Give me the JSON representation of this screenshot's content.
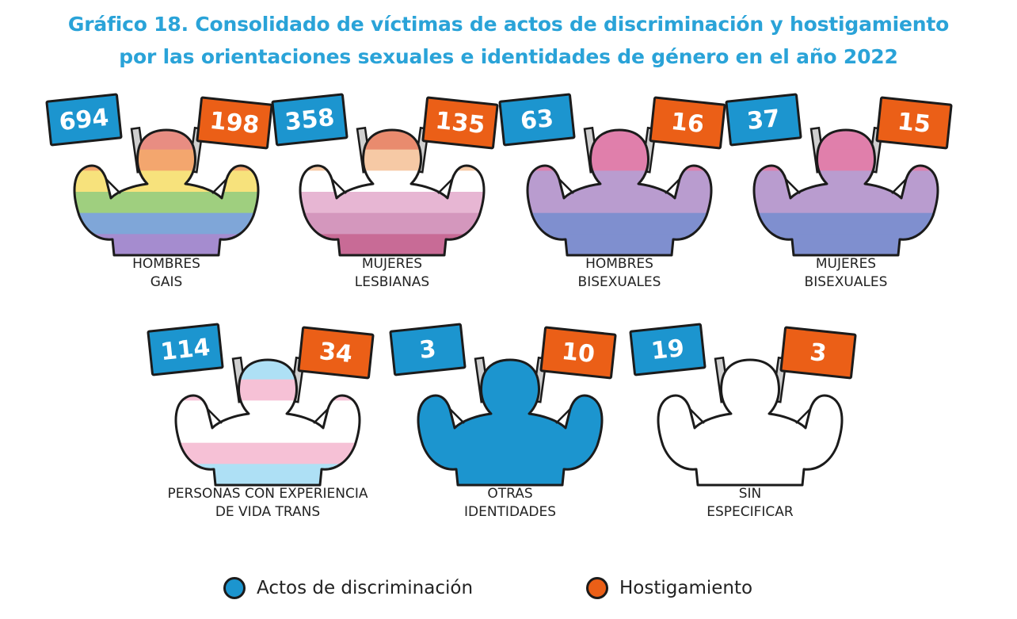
{
  "title_line1": "Gráfico 18. Consolidado de víctimas de actos de discriminación y hostigamiento",
  "title_line2": "por las orientaciones sexuales e identidades de género en el año 2022",
  "colors": {
    "discriminacion": "#1c95cf",
    "hostigamiento": "#eb5f17"
  },
  "chart_data": {
    "type": "bar",
    "title": "Gráfico 18. Consolidado de víctimas de actos de discriminación y hostigamiento por las orientaciones sexuales e identidades de género en el año 2022",
    "categories": [
      "HOMBRES GAIS",
      "MUJERES LESBIANAS",
      "HOMBRES BISEXUALES",
      "MUJERES BISEXUALES",
      "PERSONAS CON EXPERIENCIA DE VIDA TRANS",
      "OTRAS IDENTIDADES",
      "SIN ESPECIFICAR"
    ],
    "series": [
      {
        "name": "Actos de discriminación",
        "values": [
          694,
          358,
          63,
          37,
          114,
          3,
          19
        ]
      },
      {
        "name": "Hostigamiento",
        "values": [
          198,
          135,
          16,
          15,
          34,
          10,
          3
        ]
      }
    ],
    "legend": "bottom"
  },
  "groups": [
    {
      "label1": "HOMBRES",
      "label2": "GAIS",
      "discriminacion": "694",
      "hostigamiento": "198",
      "palette": "rainbow"
    },
    {
      "label1": "MUJERES",
      "label2": "LESBIANAS",
      "discriminacion": "358",
      "hostigamiento": "135",
      "palette": "lesbian"
    },
    {
      "label1": "HOMBRES",
      "label2": "BISEXUALES",
      "discriminacion": "63",
      "hostigamiento": "16",
      "palette": "bisexual"
    },
    {
      "label1": "MUJERES",
      "label2": "BISEXUALES",
      "discriminacion": "37",
      "hostigamiento": "15",
      "palette": "bisexual"
    },
    {
      "label1": "PERSONAS CON EXPERIENCIA",
      "label2": "DE VIDA TRANS",
      "discriminacion": "114",
      "hostigamiento": "34",
      "palette": "trans"
    },
    {
      "label1": "OTRAS",
      "label2": "IDENTIDADES",
      "discriminacion": "3",
      "hostigamiento": "10",
      "palette": "solid-blue"
    },
    {
      "label1": "SIN",
      "label2": "ESPECIFICAR",
      "discriminacion": "19",
      "hostigamiento": "3",
      "palette": "white"
    }
  ],
  "palettes": {
    "rainbow": [
      "#e88d82",
      "#f3a66e",
      "#f7e27c",
      "#9fcf7f",
      "#7fa6d8",
      "#a58ccf"
    ],
    "lesbian": [
      "#e98b6e",
      "#f6c9a5",
      "#ffffff",
      "#e7b6d3",
      "#d497bd",
      "#c86b96"
    ],
    "bisexual": [
      "#e07fab",
      "#e07fab",
      "#b99ccf",
      "#b99ccf",
      "#7f8fcf",
      "#7f8fcf"
    ],
    "trans": [
      "#aee0f5",
      "#f6c1d6",
      "#ffffff",
      "#ffffff",
      "#f6c1d6",
      "#aee0f5"
    ],
    "solid-blue": [
      "#1c95cf",
      "#1c95cf",
      "#1c95cf",
      "#1c95cf",
      "#1c95cf",
      "#1c95cf"
    ],
    "white": [
      "#ffffff",
      "#ffffff",
      "#ffffff",
      "#ffffff",
      "#ffffff",
      "#ffffff"
    ]
  },
  "legend": {
    "discriminacion_label": "Actos de discriminación",
    "hostigamiento_label": "Hostigamiento"
  }
}
